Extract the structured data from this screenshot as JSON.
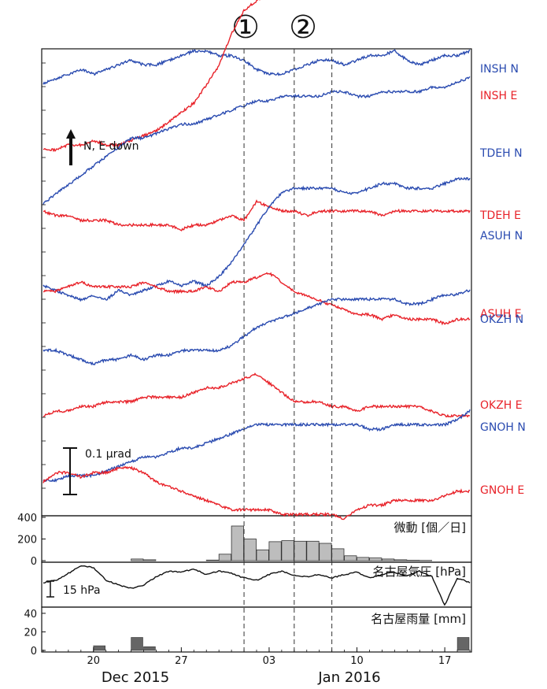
{
  "markers": [
    "①",
    "②"
  ],
  "annotation_direction": "N, E down",
  "annotation_scale": "0.1 μrad",
  "annotation_pressure": "15 hPa",
  "x_month_left": "Dec 2015",
  "x_month_right": "Jan 2016",
  "colors": {
    "north": "#2a4bb0",
    "east": "#e8232a",
    "bar": "#bdbdbd"
  },
  "chart_data": [
    {
      "type": "line",
      "title": "",
      "xlabel": "",
      "ylabel": "",
      "x_ticks": [
        "20",
        "27",
        "03",
        "10",
        "17"
      ],
      "x_range": [
        "2015-12-16",
        "2016-01-19"
      ],
      "vertical_markers": [
        "2016-01-01",
        "2016-01-05",
        "2016-01-08"
      ],
      "series": [
        {
          "name": "INSH N",
          "color": "blue",
          "values": [
            0.0,
            0.01,
            0.02,
            0.03,
            0.02,
            0.03,
            0.04,
            0.05,
            0.04,
            0.04,
            0.05,
            0.06,
            0.07,
            0.07,
            0.06,
            0.06,
            0.05,
            0.03,
            0.02,
            0.02,
            0.03,
            0.04,
            0.05,
            0.05,
            0.04,
            0.05,
            0.06,
            0.06,
            0.07,
            0.05,
            0.04,
            0.05,
            0.06,
            0.06,
            0.07
          ]
        },
        {
          "name": "INSH E",
          "color": "red",
          "values": [
            0.0,
            0.0,
            0.01,
            0.01,
            0.02,
            0.01,
            0.01,
            0.02,
            0.03,
            0.04,
            0.06,
            0.08,
            0.1,
            0.14,
            0.18,
            0.25,
            0.3,
            0.32,
            0.34,
            0.35,
            0.36,
            0.37,
            0.37,
            0.38,
            0.38,
            0.39,
            0.39,
            0.39,
            0.4,
            0.4,
            0.4,
            0.4,
            0.41,
            0.41,
            0.41
          ]
        },
        {
          "name": "TDEH N",
          "color": "blue",
          "values": [
            0.0,
            0.02,
            0.04,
            0.06,
            0.08,
            0.1,
            0.12,
            0.14,
            0.14,
            0.15,
            0.16,
            0.17,
            0.17,
            0.18,
            0.19,
            0.2,
            0.21,
            0.22,
            0.22,
            0.23,
            0.23,
            0.23,
            0.23,
            0.24,
            0.24,
            0.23,
            0.23,
            0.24,
            0.24,
            0.24,
            0.24,
            0.25,
            0.25,
            0.26,
            0.27
          ]
        },
        {
          "name": "TDEH E",
          "color": "red",
          "values": [
            0.0,
            -0.01,
            -0.01,
            -0.02,
            -0.02,
            -0.02,
            -0.03,
            -0.03,
            -0.03,
            -0.03,
            -0.03,
            -0.04,
            -0.03,
            -0.03,
            -0.02,
            -0.01,
            -0.02,
            0.02,
            0.01,
            0.0,
            0.0,
            -0.01,
            0.0,
            0.0,
            0.0,
            0.0,
            0.0,
            -0.01,
            0.0,
            0.0,
            0.0,
            0.0,
            0.0,
            0.0,
            0.0
          ]
        },
        {
          "name": "ASUH N",
          "color": "blue",
          "values": [
            0.0,
            -0.01,
            -0.02,
            -0.03,
            -0.02,
            -0.03,
            -0.01,
            -0.02,
            -0.01,
            0.0,
            0.01,
            0.0,
            0.01,
            0.0,
            0.02,
            0.05,
            0.09,
            0.13,
            0.17,
            0.2,
            0.21,
            0.21,
            0.21,
            0.21,
            0.2,
            0.2,
            0.21,
            0.22,
            0.22,
            0.21,
            0.21,
            0.21,
            0.22,
            0.23,
            0.23
          ]
        },
        {
          "name": "ASUH E",
          "color": "red",
          "values": [
            0.0,
            0.0,
            0.01,
            0.02,
            0.01,
            0.01,
            0.01,
            0.01,
            0.02,
            0.01,
            0.0,
            0.0,
            0.0,
            0.01,
            0.0,
            0.02,
            0.02,
            0.03,
            0.04,
            0.02,
            0.0,
            -0.01,
            -0.02,
            -0.03,
            -0.04,
            -0.05,
            -0.05,
            -0.06,
            -0.05,
            -0.06,
            -0.06,
            -0.06,
            -0.07,
            -0.06,
            -0.06
          ]
        },
        {
          "name": "OKZH N",
          "color": "blue",
          "values": [
            0.0,
            0.0,
            -0.01,
            -0.02,
            -0.03,
            -0.02,
            -0.02,
            -0.01,
            -0.02,
            -0.01,
            -0.01,
            0.0,
            0.0,
            0.0,
            0.0,
            0.01,
            0.03,
            0.05,
            0.06,
            0.07,
            0.08,
            0.09,
            0.1,
            0.11,
            0.11,
            0.11,
            0.11,
            0.11,
            0.11,
            0.1,
            0.1,
            0.11,
            0.12,
            0.12,
            0.13
          ]
        },
        {
          "name": "OKZH E",
          "color": "red",
          "values": [
            0.0,
            0.01,
            0.01,
            0.02,
            0.02,
            0.03,
            0.03,
            0.03,
            0.04,
            0.04,
            0.04,
            0.04,
            0.05,
            0.06,
            0.06,
            0.07,
            0.08,
            0.09,
            0.07,
            0.05,
            0.03,
            0.03,
            0.03,
            0.02,
            0.02,
            0.01,
            0.02,
            0.02,
            0.02,
            0.02,
            0.02,
            0.01,
            0.0,
            0.0,
            0.0
          ]
        },
        {
          "name": "GNOH N",
          "color": "blue",
          "values": [
            0.0,
            0.0,
            0.01,
            0.01,
            0.01,
            0.02,
            0.03,
            0.04,
            0.05,
            0.05,
            0.06,
            0.07,
            0.07,
            0.08,
            0.09,
            0.1,
            0.11,
            0.12,
            0.12,
            0.12,
            0.12,
            0.12,
            0.12,
            0.12,
            0.12,
            0.12,
            0.11,
            0.11,
            0.12,
            0.12,
            0.12,
            0.12,
            0.12,
            0.13,
            0.15
          ]
        },
        {
          "name": "GNOH E",
          "color": "red",
          "values": [
            0.0,
            0.02,
            0.02,
            0.01,
            0.02,
            0.02,
            0.03,
            0.03,
            0.02,
            0.0,
            -0.01,
            -0.02,
            -0.03,
            -0.04,
            -0.05,
            -0.06,
            -0.06,
            -0.06,
            -0.06,
            -0.07,
            -0.07,
            -0.07,
            -0.07,
            -0.07,
            -0.08,
            -0.06,
            -0.05,
            -0.05,
            -0.04,
            -0.04,
            -0.04,
            -0.04,
            -0.03,
            -0.02,
            -0.02
          ]
        }
      ]
    },
    {
      "type": "bar",
      "title": "微動 [個／日]",
      "ylim": [
        0,
        400
      ],
      "yticks": [
        0,
        200,
        400
      ],
      "x_start": "2015-12-16",
      "values": [
        0,
        0,
        0,
        0,
        0,
        0,
        0,
        15,
        8,
        0,
        0,
        0,
        0,
        5,
        60,
        320,
        200,
        100,
        175,
        185,
        180,
        180,
        160,
        110,
        45,
        30,
        25,
        15,
        8,
        4,
        2,
        0,
        0,
        0,
        0
      ]
    },
    {
      "type": "line",
      "title": "名古屋気圧 [hPa]",
      "x_start": "2015-12-16",
      "values": [
        1020,
        1022,
        1028,
        1035,
        1033,
        1022,
        1018,
        1015,
        1018,
        1025,
        1030,
        1029,
        1032,
        1027,
        1030,
        1028,
        1024,
        1022,
        1027,
        1030,
        1026,
        1025,
        1027,
        1024,
        1027,
        1029,
        1024,
        1027,
        1029,
        1026,
        1030,
        1025,
        1000,
        1024,
        1020
      ]
    },
    {
      "type": "bar",
      "title": "名古屋雨量 [mm]",
      "ylim": [
        0,
        45
      ],
      "yticks": [
        0,
        20,
        40
      ],
      "x_start": "2015-12-16",
      "values": [
        0,
        0,
        0,
        0,
        5,
        0,
        0,
        14,
        4,
        0,
        0,
        0,
        0,
        0,
        0,
        0,
        0,
        0,
        0,
        0,
        0,
        0,
        0,
        0,
        0,
        0,
        0,
        0,
        0,
        0,
        0,
        0,
        0,
        14,
        0
      ]
    }
  ]
}
